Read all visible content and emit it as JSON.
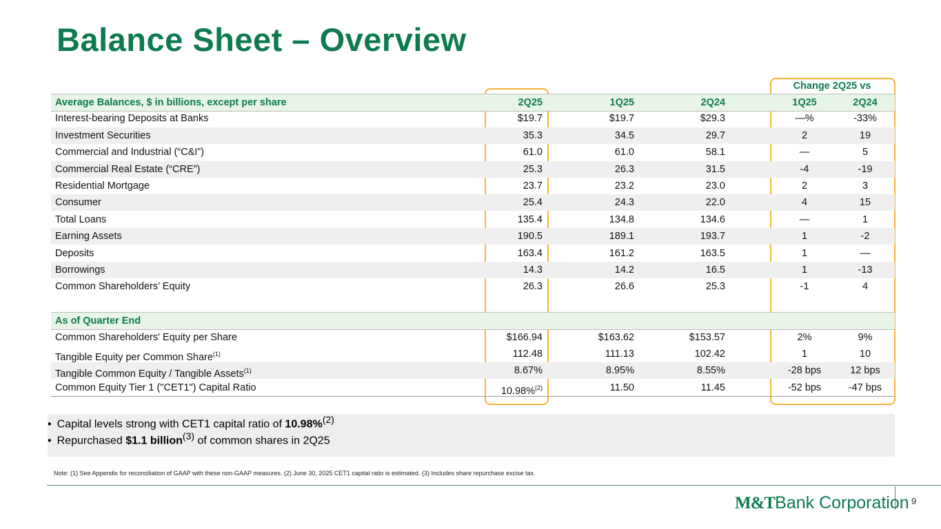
{
  "title": "Balance Sheet – Overview",
  "table": {
    "change_header": "Change 2Q25 vs",
    "header": [
      "Average Balances, $ in billions, except per share",
      "2Q25",
      "1Q25",
      "2Q24",
      "1Q25",
      "2Q24"
    ],
    "rows": [
      [
        "Interest-bearing Deposits at Banks",
        "$19.7",
        "$19.7",
        "$29.3",
        "—%",
        "-33%"
      ],
      [
        "Investment Securities",
        "35.3",
        "34.5",
        "29.7",
        "2",
        "19"
      ],
      [
        "Commercial and Industrial (“C&I”)",
        "61.0",
        "61.0",
        "58.1",
        "—",
        "5"
      ],
      [
        "Commercial Real Estate (“CRE”)",
        "25.3",
        "26.3",
        "31.5",
        "-4",
        "-19"
      ],
      [
        "Residential Mortgage",
        "23.7",
        "23.2",
        "23.0",
        "2",
        "3"
      ],
      [
        "Consumer",
        "25.4",
        "24.3",
        "22.0",
        "4",
        "15"
      ],
      [
        "Total Loans",
        "135.4",
        "134.8",
        "134.6",
        "—",
        "1"
      ],
      [
        "Earning Assets",
        "190.5",
        "189.1",
        "193.7",
        "1",
        "-2"
      ],
      [
        "Deposits",
        "163.4",
        "161.2",
        "163.5",
        "1",
        "—"
      ],
      [
        "Borrowings",
        "14.3",
        "14.2",
        "16.5",
        "1",
        "-13"
      ],
      [
        "Common Shareholders’ Equity",
        "26.3",
        "26.6",
        "25.3",
        "-1",
        "4"
      ]
    ],
    "section2": "As of Quarter End",
    "rows2": [
      [
        "Common Shareholders' Equity per Share",
        "$166.94",
        "$163.62",
        "$153.57",
        "2%",
        "9%"
      ],
      [
        {
          "text": "Tangible Equity per Common Share",
          "sup": "(1)"
        },
        "112.48",
        "111.13",
        "102.42",
        "1",
        "10"
      ],
      [
        {
          "text": "Tangible Common Equity / Tangible Assets",
          "sup": "(1)"
        },
        "8.67%",
        "8.95%",
        "8.55%",
        "-28 bps",
        "12 bps"
      ],
      [
        "Common Equity Tier 1 (\"CET1\") Capital Ratio",
        {
          "text": "10.98%",
          "sup": "(2)"
        },
        "11.50",
        "11.45",
        "-52 bps",
        "-47 bps"
      ]
    ]
  },
  "bullets": [
    [
      {
        "text": "Capital levels strong with CET1 capital ratio of "
      },
      {
        "text": "10.98%",
        "bold": true
      },
      {
        "text": "(2)",
        "sup": true
      }
    ],
    [
      {
        "text": "Repurchased "
      },
      {
        "text": "$1.1 billion",
        "bold": true
      },
      {
        "text": "(3)",
        "sup": true
      },
      {
        "text": " of common shares in 2Q25"
      }
    ]
  ],
  "note": "Note: (1) See Appendix for reconciliation of GAAP with these non-GAAP measures. (2) June 30, 2025 CET1 capital ratio is estimated. (3) Includes share repurchase excise tax.",
  "logo": {
    "mark": "M&T",
    "name": "Bank Corporation"
  },
  "page_number": "9"
}
